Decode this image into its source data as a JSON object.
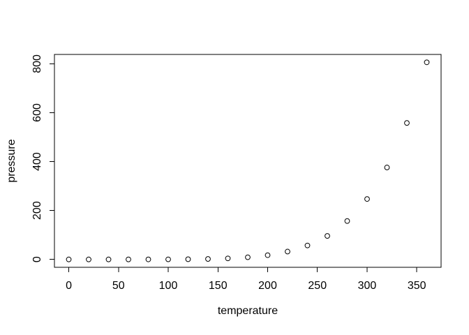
{
  "figure": {
    "background_color": "#ffffff",
    "foreground_color": "#000000"
  },
  "chart_data": {
    "type": "scatter",
    "title": "",
    "xlabel": "temperature",
    "ylabel": "pressure",
    "x": [
      0,
      20,
      40,
      60,
      80,
      100,
      120,
      140,
      160,
      180,
      200,
      220,
      240,
      260,
      280,
      300,
      320,
      340,
      360
    ],
    "y": [
      0.0002,
      0.0012,
      0.006,
      0.03,
      0.09,
      0.27,
      0.75,
      1.85,
      4.2,
      8.8,
      17.3,
      32.1,
      57,
      96,
      157,
      247,
      376,
      558,
      806
    ],
    "x_ticks": [
      0,
      50,
      100,
      150,
      200,
      250,
      300,
      350
    ],
    "y_ticks": [
      0,
      200,
      400,
      600,
      800
    ],
    "xlim": [
      -14.4,
      374.4
    ],
    "ylim": [
      -32.24,
      838.24
    ],
    "grid": false,
    "legend": null,
    "marker": "open-circle",
    "marker_color": "#000000",
    "axis_color": "#000000"
  }
}
